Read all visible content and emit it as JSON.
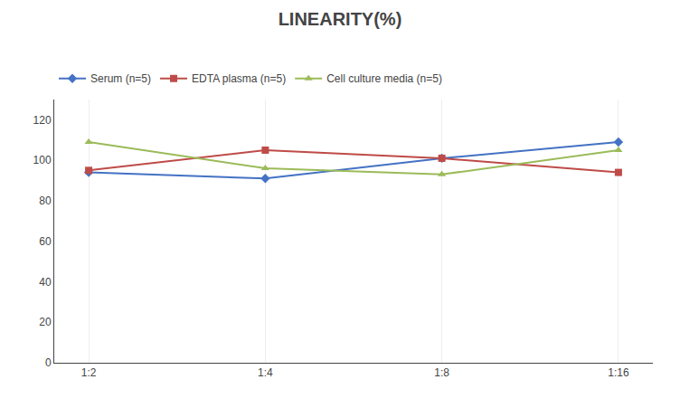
{
  "chart_data": {
    "type": "line",
    "title": "LINEARITY(%)",
    "categories": [
      "1:2",
      "1:4",
      "1:8",
      "1:16"
    ],
    "series": [
      {
        "name": "Serum (n=5)",
        "color": "#4472C4",
        "marker": "diamond",
        "line_style": "solid",
        "values": [
          94,
          91,
          101,
          109
        ]
      },
      {
        "name": "EDTA plasma (n=5)",
        "color": "#BE4B48",
        "marker": "square",
        "line_style": "solid",
        "values": [
          95,
          105,
          101,
          94
        ]
      },
      {
        "name": "Cell culture media (n=5)",
        "color": "#9BBB59",
        "marker": "triangle-up",
        "line_style": "solid",
        "values": [
          109,
          96,
          93,
          105
        ]
      }
    ],
    "ylim": [
      0,
      130
    ],
    "yticks": [
      0,
      20,
      40,
      60,
      80,
      100,
      120
    ],
    "grid": "x",
    "legend": "top left"
  }
}
